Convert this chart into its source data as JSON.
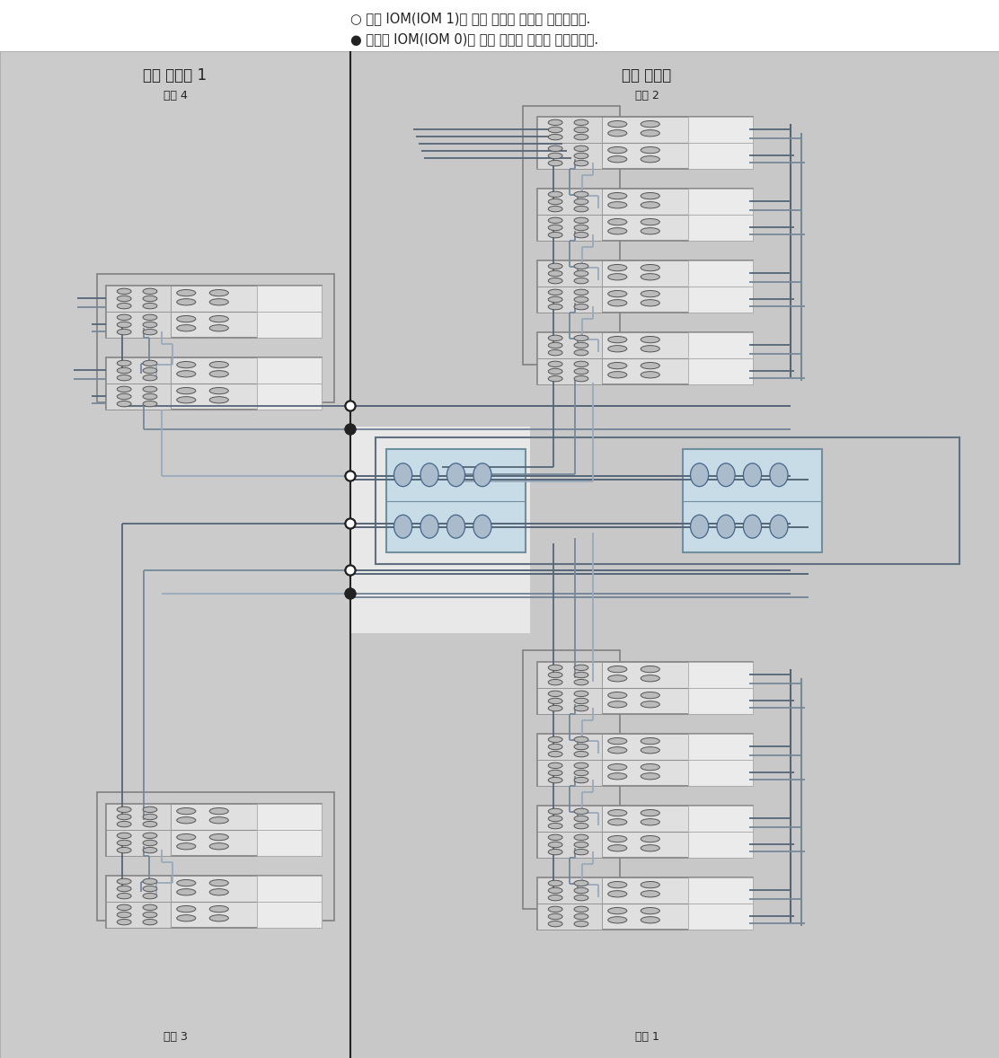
{
  "legend_open_text": "○ 위쪽 IOM(IOM 1)에 대한 케이블 연결을 나타냅니다.",
  "legend_filled_text": "● 아래쪽 IOM(IOM 0)에 대한 케이블 연결을 나타냅니다.",
  "left_cabinet_title": "확장 쫠비닛 1",
  "left_cabinet_chain4": "체인 4",
  "left_cabinet_chain3": "체인 3",
  "right_cabinet_title": "기본 쫠비닛",
  "right_cabinet_chain2": "체인 2",
  "right_cabinet_chain1": "체인 1",
  "bg_left": "#cccccc",
  "bg_right": "#c8c8c8",
  "shelf_body": "#e4e4e4",
  "shelf_iom_left": "#e0e0e0",
  "shelf_disk_right": "#eeeeee",
  "shelf_border": "#888888",
  "ctrl_fill": "#c8dce8",
  "ctrl_border": "#7090a0",
  "lc1": "#556677",
  "lc2": "#778899",
  "lc3": "#99aabb",
  "lc4": "#aabbcc"
}
